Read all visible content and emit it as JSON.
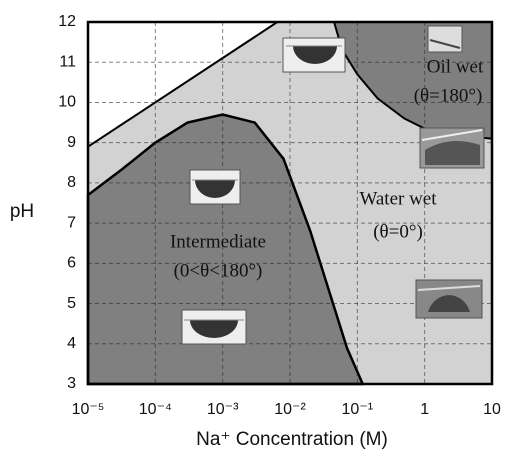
{
  "chart_data": {
    "type": "phase-diagram",
    "x_label": "Na⁺ Concentration (M)",
    "y_label": "pH",
    "x_log": true,
    "xlim": [
      1e-05,
      10
    ],
    "ylim": [
      3,
      12
    ],
    "xticks": [
      {
        "value": 1e-05,
        "label": "10⁻⁵"
      },
      {
        "value": 0.0001,
        "label": "10⁻⁴"
      },
      {
        "value": 0.001,
        "label": "10⁻³"
      },
      {
        "value": 0.01,
        "label": "10⁻²"
      },
      {
        "value": 0.1,
        "label": "10⁻¹"
      },
      1,
      10
    ],
    "yticks": [
      3,
      4,
      5,
      6,
      7,
      8,
      9,
      10,
      11,
      12
    ],
    "grid": true,
    "regions": [
      {
        "name": "Water wet",
        "condition": "(θ=0°)",
        "color": "#d2d2d2",
        "x": [
          1e-05,
          10,
          10,
          1e-05
        ],
        "y": [
          3,
          3,
          12,
          12
        ]
      },
      {
        "color": "#ffffff",
        "x": [
          1e-05,
          1e-05,
          0.0065
        ],
        "y": [
          8.9,
          12,
          12
        ]
      },
      {
        "name": "Oil wet",
        "condition": "(θ=180°)",
        "color": "#7f7f7f",
        "x": [
          0.045,
          0.06,
          0.1,
          0.2,
          0.5,
          1,
          2,
          10,
          10
        ],
        "y": [
          12,
          11.3,
          10.7,
          10.1,
          9.6,
          9.35,
          9.2,
          9.1,
          12
        ]
      },
      {
        "name": "Intermediate",
        "condition": "(0<θ<180°)",
        "color": "#808080",
        "x": [
          1e-05,
          3e-05,
          0.0001,
          0.0003,
          0.001,
          0.003,
          0.008,
          0.02,
          0.04,
          0.07,
          0.12,
          1e-05
        ],
        "y": [
          7.7,
          8.3,
          9.0,
          9.5,
          9.7,
          9.5,
          8.6,
          6.8,
          5.2,
          3.9,
          3,
          3
        ]
      }
    ]
  }
}
